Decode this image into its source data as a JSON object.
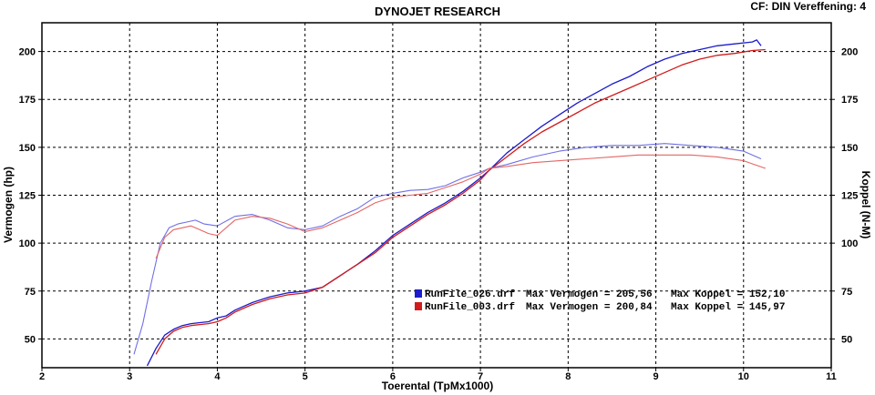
{
  "header": {
    "title": "DYNOJET RESEARCH",
    "corner_info": "CF: DIN  Vereffening: 4"
  },
  "chart_data": {
    "type": "line",
    "title": "DYNOJET RESEARCH",
    "xlabel": "Toerental (TpMx1000)",
    "ylabel_left": "Vermogen (hp)",
    "ylabel_right": "Koppel (N-M)",
    "xlim": [
      2,
      11
    ],
    "ylim": [
      35,
      215
    ],
    "x_ticks": [
      "2",
      "3",
      "4",
      "5",
      "6",
      "7",
      "8",
      "9",
      "10",
      "11"
    ],
    "y_ticks_left": [
      "50",
      "75",
      "100",
      "125",
      "150",
      "175",
      "200"
    ],
    "y_ticks_right": [
      "50",
      "75",
      "100",
      "125",
      "150",
      "175",
      "200"
    ],
    "grid": true,
    "legend_placement": "center",
    "legend": [
      {
        "file": "RunFile_026.drf",
        "power_label": "Max Vermogen = 205,56",
        "torque_label": "Max Koppel = 152,10",
        "color": "#1c1ccc"
      },
      {
        "file": "RunFile_003.drf",
        "power_label": "Max Vermogen = 200,84",
        "torque_label": "Max Koppel = 145,97",
        "color": "#d01c1c"
      }
    ],
    "series": [
      {
        "file": "RunFile_026.drf",
        "measure": "power",
        "color": "#1c1ccc",
        "x": [
          3.2,
          3.3,
          3.4,
          3.5,
          3.6,
          3.7,
          3.8,
          3.9,
          4.0,
          4.1,
          4.2,
          4.4,
          4.6,
          4.8,
          5.0,
          5.2,
          5.4,
          5.6,
          5.8,
          6.0,
          6.2,
          6.4,
          6.6,
          6.8,
          7.0,
          7.1,
          7.3,
          7.5,
          7.7,
          7.9,
          8.1,
          8.3,
          8.5,
          8.7,
          8.9,
          9.1,
          9.3,
          9.5,
          9.7,
          9.9,
          10.1,
          10.15,
          10.2
        ],
        "y": [
          36,
          45,
          52,
          55,
          57,
          58,
          58.5,
          59,
          61,
          62,
          65,
          69,
          72,
          74,
          75,
          77,
          83,
          89,
          96,
          104,
          110,
          116,
          121,
          127,
          134,
          138,
          147,
          154,
          161,
          167,
          173,
          178,
          183,
          187,
          192,
          196,
          199,
          201,
          203,
          204,
          205,
          206,
          203
        ]
      },
      {
        "file": "RunFile_003.drf",
        "measure": "power",
        "color": "#d01c1c",
        "x": [
          3.3,
          3.4,
          3.5,
          3.6,
          3.7,
          3.8,
          3.9,
          4.0,
          4.1,
          4.2,
          4.4,
          4.6,
          4.8,
          5.0,
          5.2,
          5.4,
          5.6,
          5.8,
          6.0,
          6.2,
          6.4,
          6.6,
          6.8,
          7.0,
          7.1,
          7.3,
          7.5,
          7.7,
          7.9,
          8.1,
          8.3,
          8.5,
          8.7,
          8.9,
          9.1,
          9.3,
          9.5,
          9.7,
          9.9,
          10.1,
          10.25
        ],
        "y": [
          42,
          50,
          54,
          56,
          57,
          57.5,
          58,
          59,
          61,
          64,
          68,
          71,
          73,
          74,
          77,
          83,
          89,
          95,
          103,
          109,
          115,
          120,
          126,
          133,
          138,
          145,
          152,
          158,
          163,
          168,
          173,
          177,
          181,
          185,
          189,
          193,
          196,
          198,
          199,
          200.5,
          201
        ]
      },
      {
        "file": "RunFile_026.drf",
        "measure": "torque",
        "color": "#6f6fe6",
        "x": [
          3.05,
          3.15,
          3.25,
          3.35,
          3.45,
          3.55,
          3.65,
          3.75,
          3.85,
          4.0,
          4.2,
          4.4,
          4.6,
          4.8,
          5.0,
          5.2,
          5.4,
          5.6,
          5.8,
          6.0,
          6.2,
          6.4,
          6.6,
          6.8,
          7.0,
          7.1,
          7.3,
          7.6,
          7.9,
          8.2,
          8.5,
          8.8,
          9.1,
          9.4,
          9.7,
          10.0,
          10.2
        ],
        "y": [
          42,
          58,
          80,
          100,
          108,
          110,
          111,
          112,
          110,
          109,
          114,
          115,
          112,
          108,
          107,
          109,
          114,
          118,
          124,
          126,
          127.5,
          128,
          130,
          134,
          137,
          139,
          141,
          145,
          148,
          150,
          151,
          151,
          152,
          151,
          150,
          148,
          144
        ]
      },
      {
        "file": "RunFile_003.drf",
        "measure": "torque",
        "color": "#e46666",
        "x": [
          3.3,
          3.4,
          3.5,
          3.6,
          3.7,
          3.8,
          3.9,
          4.0,
          4.2,
          4.4,
          4.6,
          4.8,
          5.0,
          5.2,
          5.4,
          5.6,
          5.8,
          6.0,
          6.2,
          6.4,
          6.6,
          6.8,
          7.0,
          7.1,
          7.3,
          7.6,
          7.9,
          8.2,
          8.5,
          8.8,
          9.1,
          9.4,
          9.7,
          10.0,
          10.25
        ],
        "y": [
          92,
          103,
          107,
          108,
          109,
          107,
          105,
          104,
          112,
          114,
          113,
          110,
          106,
          108,
          112,
          116,
          121,
          124,
          125,
          126,
          129,
          132,
          136,
          139,
          140,
          142,
          143,
          144,
          145,
          146,
          146,
          146,
          145,
          143,
          139
        ]
      }
    ]
  },
  "colors": {
    "frame": "#000000",
    "grid": "#000000",
    "background": "#ffffff"
  }
}
